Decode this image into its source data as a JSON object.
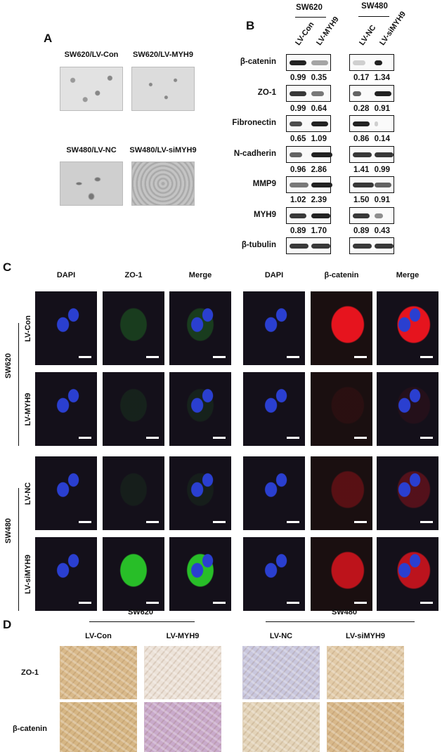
{
  "panel_a": {
    "label": "A",
    "captions": [
      "SW620/LV-Con",
      "SW620/LV-MYH9",
      "SW480/LV-NC",
      "SW480/LV-siMYH9"
    ]
  },
  "panel_b": {
    "label": "B",
    "groups": [
      "SW620",
      "SW480"
    ],
    "lanes": [
      "LV-Con",
      "LV-MYH9",
      "LV-NC",
      "LV-siMYH9"
    ],
    "rows": [
      {
        "protein": "β-catenin",
        "values": [
          "0.99 0.35",
          "0.17 1.34"
        ]
      },
      {
        "protein": "ZO-1",
        "values": [
          "0.99 0.64",
          "0.28 0.91"
        ]
      },
      {
        "protein": "Fibronectin",
        "values": [
          "0.65 1.09",
          "0.86 0.14"
        ]
      },
      {
        "protein": "N-cadherin",
        "values": [
          "0.96 2.86",
          "1.41 0.99"
        ]
      },
      {
        "protein": "MMP9",
        "values": [
          "1.02 2.39",
          "1.50 0.91"
        ]
      },
      {
        "protein": "MYH9",
        "values": [
          "0.89 1.70",
          "0.89 0.43"
        ]
      },
      {
        "protein": "β-tubulin",
        "values": [
          "",
          ""
        ]
      }
    ]
  },
  "panel_c": {
    "label": "C",
    "columns": [
      "DAPI",
      "ZO-1",
      "Merge",
      "DAPI",
      "β-catenin",
      "Merge"
    ],
    "rows": [
      "LV-Con",
      "LV-MYH9",
      "LV-NC",
      "LV-siMYH9"
    ],
    "groups": [
      "SW620",
      "SW480"
    ]
  },
  "panel_d": {
    "label": "D",
    "groups": [
      "SW620",
      "SW480"
    ],
    "columns": [
      "LV-Con",
      "LV-MYH9",
      "LV-NC",
      "LV-siMYH9"
    ],
    "rows": [
      "ZO-1",
      "β-catenin"
    ]
  }
}
